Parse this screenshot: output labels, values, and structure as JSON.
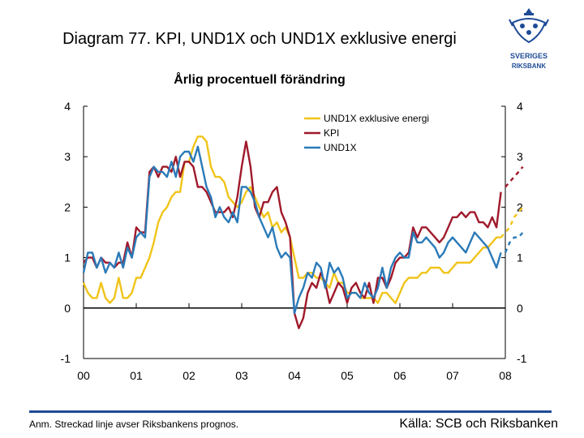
{
  "header": {
    "title": "Diagram 77. KPI, UND1X och UND1X exklusive energi",
    "subtitle": "Årlig procentuell förändring"
  },
  "logo": {
    "text": "SVERIGES RIKSBANK",
    "colors": {
      "mark": "#1e4b96"
    }
  },
  "footer": {
    "note": "Anm. Streckad linje avser Riksbankens prognos.",
    "source": "Källa: SCB och Riksbanken"
  },
  "chart_data": {
    "type": "line",
    "title": "Diagram 77. KPI, UND1X och UND1X exklusive energi",
    "subtitle": "Årlig procentuell förändring",
    "xlabel": "",
    "ylabel": "",
    "xlim": [
      2000,
      2008
    ],
    "ylim": [
      -1,
      4
    ],
    "x_ticks": [
      "00",
      "01",
      "02",
      "03",
      "04",
      "05",
      "06",
      "07",
      "08"
    ],
    "y_ticks_left": [
      "4",
      "3",
      "2",
      "1",
      "0",
      "-1"
    ],
    "y_ticks_right": [
      "4",
      "3",
      "2",
      "1",
      "0",
      "-1"
    ],
    "zero_line": true,
    "legend_position": "top-right",
    "series": [
      {
        "name": "UND1X exklusive energi",
        "color": "#f0c419",
        "x": [
          2000.0,
          2000.083,
          2000.167,
          2000.25,
          2000.333,
          2000.417,
          2000.5,
          2000.583,
          2000.667,
          2000.75,
          2000.833,
          2000.917,
          2001.0,
          2001.083,
          2001.167,
          2001.25,
          2001.333,
          2001.417,
          2001.5,
          2001.583,
          2001.667,
          2001.75,
          2001.833,
          2001.917,
          2002.0,
          2002.083,
          2002.167,
          2002.25,
          2002.333,
          2002.417,
          2002.5,
          2002.583,
          2002.667,
          2002.75,
          2002.833,
          2002.917,
          2003.0,
          2003.083,
          2003.167,
          2003.25,
          2003.333,
          2003.417,
          2003.5,
          2003.583,
          2003.667,
          2003.75,
          2003.833,
          2003.917,
          2004.0,
          2004.083,
          2004.167,
          2004.25,
          2004.333,
          2004.417,
          2004.5,
          2004.583,
          2004.667,
          2004.75,
          2004.833,
          2004.917,
          2005.0,
          2005.083,
          2005.167,
          2005.25,
          2005.333,
          2005.417,
          2005.5,
          2005.583,
          2005.667,
          2005.75,
          2005.833,
          2005.917,
          2006.0,
          2006.083,
          2006.167,
          2006.25,
          2006.333,
          2006.417,
          2006.5,
          2006.583,
          2006.667,
          2006.75,
          2006.833,
          2006.917,
          2007.0,
          2007.083,
          2007.167,
          2007.25,
          2007.333,
          2007.417,
          2007.5,
          2007.583,
          2007.667,
          2007.75,
          2007.833,
          2007.917
        ],
        "values": [
          0.5,
          0.3,
          0.2,
          0.2,
          0.5,
          0.2,
          0.1,
          0.2,
          0.6,
          0.2,
          0.2,
          0.3,
          0.6,
          0.6,
          0.8,
          1.0,
          1.3,
          1.7,
          1.9,
          2.0,
          2.2,
          2.3,
          2.3,
          2.9,
          2.9,
          3.2,
          3.4,
          3.4,
          3.3,
          2.8,
          2.6,
          2.6,
          2.5,
          2.2,
          2.1,
          2.0,
          2.1,
          2.3,
          2.4,
          2.2,
          2.0,
          1.8,
          1.9,
          1.6,
          1.7,
          1.5,
          1.6,
          1.4,
          1.0,
          0.6,
          0.6,
          0.7,
          0.7,
          0.6,
          0.6,
          0.5,
          0.4,
          0.7,
          0.5,
          0.5,
          0.3,
          0.3,
          0.3,
          0.2,
          0.2,
          0.2,
          0.2,
          0.1,
          0.3,
          0.3,
          0.2,
          0.1,
          0.3,
          0.5,
          0.6,
          0.6,
          0.6,
          0.7,
          0.7,
          0.8,
          0.8,
          0.8,
          0.7,
          0.7,
          0.8,
          0.9,
          0.9,
          0.9,
          0.9,
          1.0,
          1.1,
          1.2,
          1.2,
          1.3,
          1.4,
          1.4
        ]
      },
      {
        "name": "KPI",
        "color": "#a0192b",
        "x": [
          2000.0,
          2000.083,
          2000.167,
          2000.25,
          2000.333,
          2000.417,
          2000.5,
          2000.583,
          2000.667,
          2000.75,
          2000.833,
          2000.917,
          2001.0,
          2001.083,
          2001.167,
          2001.25,
          2001.333,
          2001.417,
          2001.5,
          2001.583,
          2001.667,
          2001.75,
          2001.833,
          2001.917,
          2002.0,
          2002.083,
          2002.167,
          2002.25,
          2002.333,
          2002.417,
          2002.5,
          2002.583,
          2002.667,
          2002.75,
          2002.833,
          2002.917,
          2003.0,
          2003.083,
          2003.167,
          2003.25,
          2003.333,
          2003.417,
          2003.5,
          2003.583,
          2003.667,
          2003.75,
          2003.833,
          2003.917,
          2004.0,
          2004.083,
          2004.167,
          2004.25,
          2004.333,
          2004.417,
          2004.5,
          2004.583,
          2004.667,
          2004.75,
          2004.833,
          2004.917,
          2005.0,
          2005.083,
          2005.167,
          2005.25,
          2005.333,
          2005.417,
          2005.5,
          2005.583,
          2005.667,
          2005.75,
          2005.833,
          2005.917,
          2006.0,
          2006.083,
          2006.167,
          2006.25,
          2006.333,
          2006.417,
          2006.5,
          2006.583,
          2006.667,
          2006.75,
          2006.833,
          2006.917,
          2007.0,
          2007.083,
          2007.167,
          2007.25,
          2007.333,
          2007.417,
          2007.5,
          2007.583,
          2007.667,
          2007.75,
          2007.833,
          2007.917
        ],
        "values": [
          0.9,
          1.0,
          1.0,
          0.8,
          1.0,
          0.9,
          0.9,
          0.8,
          0.9,
          0.9,
          1.3,
          1.0,
          1.6,
          1.5,
          1.5,
          2.7,
          2.8,
          2.6,
          2.8,
          2.8,
          2.7,
          3.0,
          2.6,
          2.9,
          2.9,
          2.8,
          2.4,
          2.4,
          2.3,
          2.1,
          1.9,
          1.9,
          1.9,
          2.0,
          1.8,
          2.2,
          2.8,
          3.3,
          2.8,
          2.0,
          1.8,
          2.1,
          2.1,
          2.3,
          2.4,
          1.9,
          1.7,
          1.4,
          -0.1,
          -0.4,
          -0.2,
          0.3,
          0.5,
          0.4,
          0.7,
          0.5,
          0.1,
          0.3,
          0.5,
          0.4,
          0.1,
          0.4,
          0.5,
          0.3,
          0.2,
          0.5,
          0.1,
          0.6,
          0.6,
          0.4,
          0.6,
          0.9,
          1.0,
          1.0,
          1.1,
          1.6,
          1.4,
          1.6,
          1.6,
          1.5,
          1.4,
          1.3,
          1.4,
          1.6,
          1.8,
          1.8,
          1.9,
          1.8,
          1.9,
          1.9,
          1.7,
          1.7,
          1.6,
          1.8,
          1.6,
          2.3
        ]
      },
      {
        "name": "UND1X",
        "color": "#2a7ab8",
        "x": [
          2000.0,
          2000.083,
          2000.167,
          2000.25,
          2000.333,
          2000.417,
          2000.5,
          2000.583,
          2000.667,
          2000.75,
          2000.833,
          2000.917,
          2001.0,
          2001.083,
          2001.167,
          2001.25,
          2001.333,
          2001.417,
          2001.5,
          2001.583,
          2001.667,
          2001.75,
          2001.833,
          2001.917,
          2002.0,
          2002.083,
          2002.167,
          2002.25,
          2002.333,
          2002.417,
          2002.5,
          2002.583,
          2002.667,
          2002.75,
          2002.833,
          2002.917,
          2003.0,
          2003.083,
          2003.167,
          2003.25,
          2003.333,
          2003.417,
          2003.5,
          2003.583,
          2003.667,
          2003.75,
          2003.833,
          2003.917,
          2004.0,
          2004.083,
          2004.167,
          2004.25,
          2004.333,
          2004.417,
          2004.5,
          2004.583,
          2004.667,
          2004.75,
          2004.833,
          2004.917,
          2005.0,
          2005.083,
          2005.167,
          2005.25,
          2005.333,
          2005.417,
          2005.5,
          2005.583,
          2005.667,
          2005.75,
          2005.833,
          2005.917,
          2006.0,
          2006.083,
          2006.167,
          2006.25,
          2006.333,
          2006.417,
          2006.5,
          2006.583,
          2006.667,
          2006.75,
          2006.833,
          2006.917,
          2007.0,
          2007.083,
          2007.167,
          2007.25,
          2007.333,
          2007.417,
          2007.5,
          2007.583,
          2007.667,
          2007.75,
          2007.833,
          2007.917
        ],
        "values": [
          0.7,
          1.1,
          1.1,
          0.8,
          1.0,
          0.7,
          0.9,
          0.8,
          1.1,
          0.8,
          1.2,
          1.0,
          1.4,
          1.5,
          1.4,
          2.6,
          2.8,
          2.7,
          2.7,
          2.6,
          2.9,
          2.6,
          3.0,
          3.1,
          3.1,
          2.9,
          3.2,
          2.8,
          2.4,
          2.2,
          1.8,
          2.0,
          1.8,
          1.7,
          1.9,
          1.7,
          2.4,
          2.4,
          2.3,
          2.1,
          1.8,
          1.6,
          1.4,
          1.6,
          1.2,
          1.0,
          1.1,
          1.0,
          -0.1,
          0.2,
          0.4,
          0.7,
          0.6,
          0.9,
          0.8,
          0.4,
          0.9,
          0.7,
          0.8,
          0.6,
          0.2,
          0.3,
          0.3,
          0.2,
          0.5,
          0.3,
          0.2,
          0.4,
          0.8,
          0.4,
          0.8,
          1.0,
          1.1,
          1.0,
          1.0,
          1.5,
          1.3,
          1.3,
          1.4,
          1.3,
          1.2,
          1.0,
          1.1,
          1.3,
          1.4,
          1.3,
          1.2,
          1.1,
          1.3,
          1.5,
          1.4,
          1.3,
          1.2,
          1.0,
          0.8,
          1.1
        ]
      }
    ],
    "forecast": [
      {
        "name": "KPI",
        "style": "dashed",
        "color": "#a0192b",
        "x": [
          2008.0,
          2008.083,
          2008.167,
          2008.25,
          2008.333
        ],
        "values": [
          2.4,
          2.5,
          2.6,
          2.7,
          2.8
        ]
      },
      {
        "name": "UND1X exklusive energi",
        "style": "dashed",
        "color": "#f0c419",
        "x": [
          2007.917,
          2008.0,
          2008.083,
          2008.167,
          2008.25,
          2008.333
        ],
        "values": [
          1.4,
          1.5,
          1.6,
          1.8,
          1.9,
          2.0
        ]
      },
      {
        "name": "UND1X",
        "style": "dashed",
        "color": "#2a7ab8",
        "x": [
          2008.0,
          2008.083,
          2008.167,
          2008.25,
          2008.333
        ],
        "values": [
          1.1,
          1.3,
          1.4,
          1.4,
          1.5
        ]
      }
    ]
  }
}
